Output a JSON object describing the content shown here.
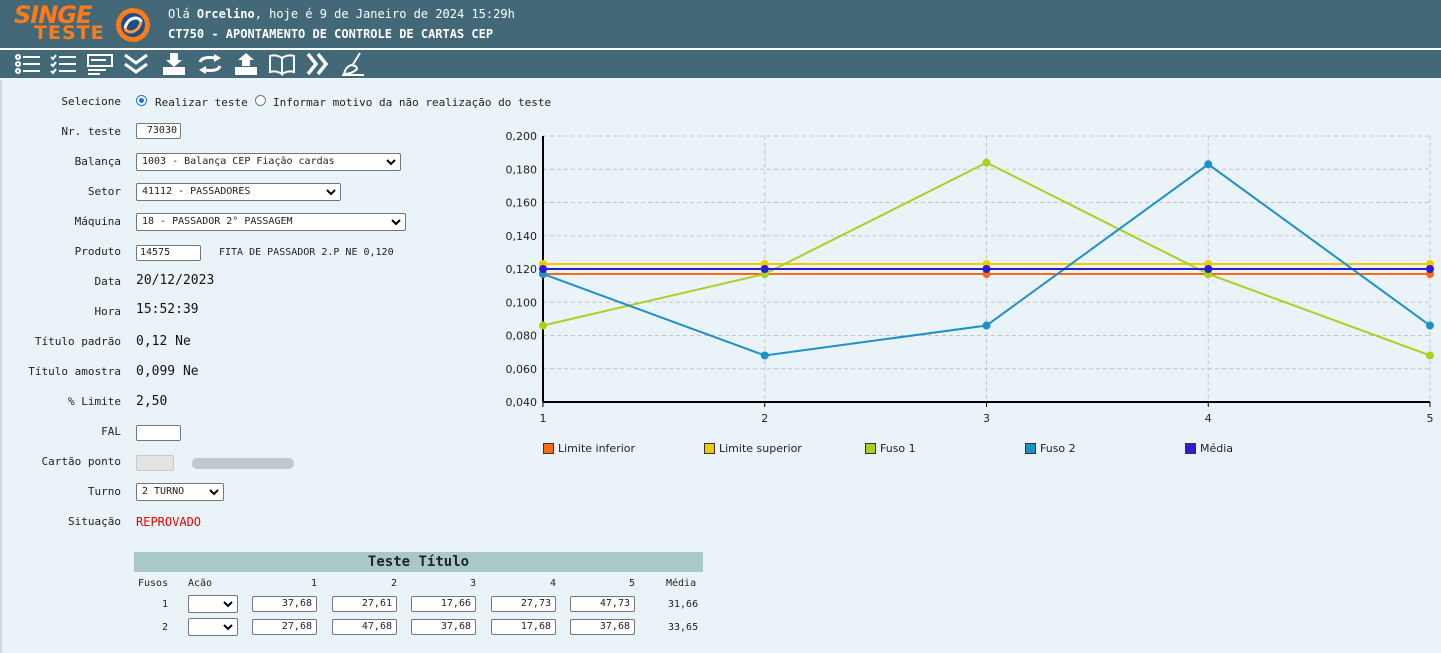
{
  "header": {
    "logo_top": "SINGE",
    "logo_bottom": "TESTE",
    "greeting_prefix": "Olá ",
    "user": "Orcelino",
    "greeting_suffix": ", hoje é 9 de Janeiro de 2024 15:29h",
    "title": "CT750 - APONTAMENTO DE CONTROLE DE CARTAS CEP"
  },
  "toolbar": [
    "list-icon",
    "checklist-icon",
    "form-icon",
    "double-chevron-down-icon",
    "download-tray-icon",
    "refresh-icon",
    "upload-tray-icon",
    "book-icon",
    "double-chevron-right-icon",
    "broom-icon"
  ],
  "form": {
    "selecione_label": "Selecione",
    "radio_realizar": "Realizar teste",
    "radio_informar": "Informar motivo da não realização do teste",
    "nr_teste_label": "Nr. teste",
    "nr_teste_value": "73030",
    "balanca_label": "Balança",
    "balanca_value": "1003 - Balança CEP Fiação cardas",
    "setor_label": "Setor",
    "setor_value": "41112 - PASSADORES",
    "maquina_label": "Máquina",
    "maquina_value": "18 - PASSADOR 2° PASSAGEM",
    "produto_label": "Produto",
    "produto_code": "14575",
    "produto_desc": "FITA DE PASSADOR 2.P NE 0,120",
    "data_label": "Data",
    "data_value": "20/12/2023",
    "hora_label": "Hora",
    "hora_value": "15:52:39",
    "titulo_padrao_label": "Título padrão",
    "titulo_padrao_value": "0,12 Ne",
    "titulo_amostra_label": "Título amostra",
    "titulo_amostra_value": "0,099 Ne",
    "limite_label": "% Limite",
    "limite_value": "2,50",
    "fal_label": "FAL",
    "fal_value": "",
    "cartao_label": "Cartão ponto",
    "turno_label": "Turno",
    "turno_value": "2 TURNO",
    "situacao_label": "Situação",
    "situacao_value": "REPROVADO"
  },
  "table": {
    "title": "Teste Título",
    "headers": [
      "Fusos",
      "Acão",
      "1",
      "2",
      "3",
      "4",
      "5",
      "Média"
    ],
    "rows": [
      {
        "fuso": "1",
        "values": [
          "37,68",
          "27,61",
          "17,66",
          "27,73",
          "47,73"
        ],
        "media": "31,66"
      },
      {
        "fuso": "2",
        "values": [
          "27,68",
          "47,68",
          "37,68",
          "17,68",
          "37,68"
        ],
        "media": "33,65"
      }
    ]
  },
  "chart_data": {
    "type": "line",
    "x": [
      1,
      2,
      3,
      4,
      5
    ],
    "ylim": [
      0.04,
      0.2
    ],
    "yticks": [
      "0,040",
      "0,060",
      "0,080",
      "0,100",
      "0,120",
      "0,140",
      "0,160",
      "0,180",
      "0,200"
    ],
    "grid": true,
    "legend_position": "bottom",
    "series": [
      {
        "name": "Limite inferior",
        "color": "#ff6a13",
        "values": [
          0.117,
          0.117,
          0.117,
          0.117,
          0.117
        ]
      },
      {
        "name": "Limite superior",
        "color": "#f5c800",
        "values": [
          0.123,
          0.123,
          0.123,
          0.123,
          0.123
        ]
      },
      {
        "name": "Fuso 1",
        "color": "#a8d120",
        "values": [
          0.086,
          0.117,
          0.184,
          0.117,
          0.068
        ]
      },
      {
        "name": "Fuso 2",
        "color": "#1e90c8",
        "values": [
          0.117,
          0.068,
          0.086,
          0.183,
          0.086
        ]
      },
      {
        "name": "Média",
        "color": "#2a1fd0",
        "values": [
          0.12,
          0.12,
          0.12,
          0.12,
          0.12
        ]
      }
    ]
  }
}
